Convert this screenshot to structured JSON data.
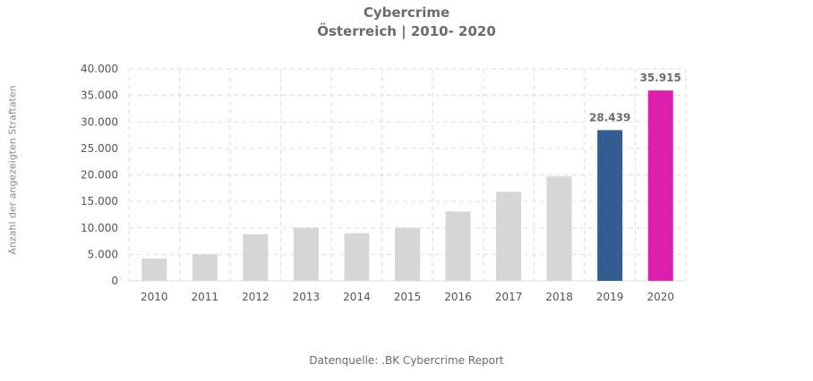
{
  "chart_data": {
    "type": "bar",
    "title": "Cybercrime",
    "subtitle": "Österreich | 2010- 2020",
    "xlabel": "",
    "ylabel": "Anzahl der angezeigten Straftaten",
    "categories": [
      "2010",
      "2011",
      "2012",
      "2013",
      "2014",
      "2015",
      "2016",
      "2017",
      "2018",
      "2019",
      "2020"
    ],
    "values": [
      4200,
      5000,
      8800,
      10000,
      9000,
      10000,
      13100,
      16800,
      19700,
      28439,
      35915
    ],
    "data_labels": [
      "",
      "",
      "",
      "",
      "",
      "",
      "",
      "",
      "",
      "28.439",
      "35.915"
    ],
    "bar_colors": [
      "#d6d6d6",
      "#d6d6d6",
      "#d6d6d6",
      "#d6d6d6",
      "#d6d6d6",
      "#d6d6d6",
      "#d6d6d6",
      "#d6d6d6",
      "#d6d6d6",
      "#335c91",
      "#dd1fae"
    ],
    "ylim": [
      0,
      40000
    ],
    "yticks": [
      0,
      5000,
      10000,
      15000,
      20000,
      25000,
      30000,
      35000,
      40000
    ],
    "ytick_labels": [
      "0",
      "5.000",
      "10.000",
      "15.000",
      "20.000",
      "25.000",
      "30.000",
      "35.000",
      "40.000"
    ],
    "grid": true,
    "grid_style": "dashed",
    "grid_color": "#dddddd"
  },
  "source": {
    "label": "Datenquelle:",
    "text": ".BK Cybercrime  Report"
  }
}
